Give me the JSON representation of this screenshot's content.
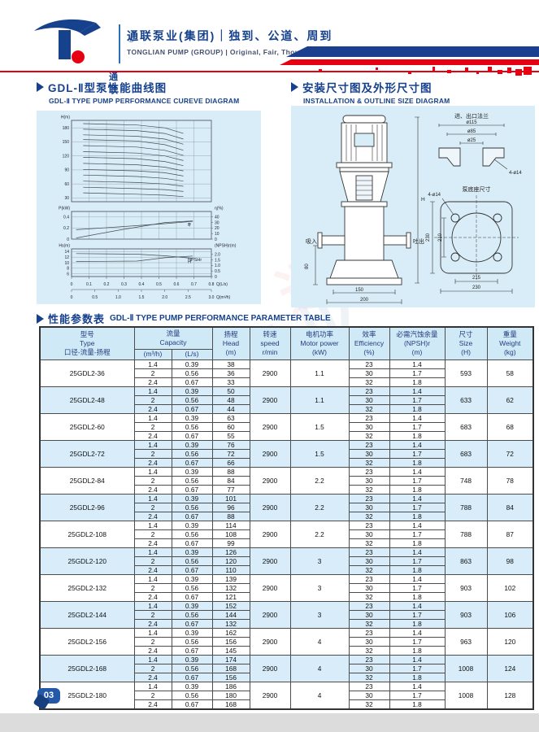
{
  "page": {
    "number": "03"
  },
  "header": {
    "logo_text": "通联",
    "registered": "®",
    "company_cn": "通联泵业(集团)｜独到、公道、周到",
    "company_en": "TONGLIAN PUMP (GROUP) | Original, Fair, Thoughtful"
  },
  "sections": {
    "curve_cn": "GDL-Ⅱ型泵性能曲线图",
    "curve_en": "GDL-Ⅱ TYPE PUMP PERFORMANCE CUREVE DIAGRAM",
    "install_cn": "安装尺寸图及外形尺寸图",
    "install_en": "INSTALLATION & OUTLINE SIZE DIAGRAM",
    "table_cn": "性能参数表",
    "table_en": "GDL-Ⅱ TYPE PUMP PERFORMANCE PARAMETER TABLE"
  },
  "chart_data": {
    "type": "line",
    "title": "GDL-Ⅱ type pump performance curves",
    "x_axis": {
      "labels": [
        "Q(L/s)",
        "Q(m³/h)"
      ],
      "ticks_ls": [
        "0",
        "0.1",
        "0.2",
        "0.3",
        "0.4",
        "0.5",
        "0.6",
        "0.7",
        "0.8"
      ],
      "ticks_m3h": [
        "0",
        "0.5",
        "1.0",
        "1.5",
        "2.0",
        "2.5",
        "3.0"
      ],
      "max_m3h": 3.0
    },
    "panels": [
      {
        "id": "head",
        "ylabel": "H(m)",
        "yticks": [
          "180",
          "150",
          "120",
          "90",
          "60",
          "30"
        ],
        "ylim": [
          22,
          196
        ],
        "series": [
          {
            "name": "25GDL2-36",
            "x": [
              0.25,
              1.4,
              2.0,
              2.4
            ],
            "y": [
              41,
              38,
              36,
              33
            ]
          },
          {
            "name": "25GDL2-48",
            "x": [
              0.25,
              1.4,
              2.0,
              2.4
            ],
            "y": [
              53,
              50,
              48,
              44
            ]
          },
          {
            "name": "25GDL2-60",
            "x": [
              0.25,
              1.4,
              2.0,
              2.4
            ],
            "y": [
              66,
              63,
              60,
              55
            ]
          },
          {
            "name": "25GDL2-72",
            "x": [
              0.25,
              1.4,
              2.0,
              2.4
            ],
            "y": [
              79,
              76,
              72,
              66
            ]
          },
          {
            "name": "25GDL2-84",
            "x": [
              0.25,
              1.4,
              2.0,
              2.4
            ],
            "y": [
              91,
              88,
              84,
              77
            ]
          },
          {
            "name": "25GDL2-96",
            "x": [
              0.25,
              1.4,
              2.0,
              2.4
            ],
            "y": [
              104,
              101,
              96,
              88
            ]
          },
          {
            "name": "25GDL2-108",
            "x": [
              0.25,
              1.4,
              2.0,
              2.4
            ],
            "y": [
              117,
              114,
              108,
              99
            ]
          },
          {
            "name": "25GDL2-120",
            "x": [
              0.25,
              1.4,
              2.0,
              2.4
            ],
            "y": [
              129,
              126,
              120,
              110
            ]
          },
          {
            "name": "25GDL2-132",
            "x": [
              0.25,
              1.4,
              2.0,
              2.4
            ],
            "y": [
              142,
              139,
              132,
              121
            ]
          },
          {
            "name": "25GDL2-144",
            "x": [
              0.25,
              1.4,
              2.0,
              2.4
            ],
            "y": [
              155,
              152,
              144,
              132
            ]
          },
          {
            "name": "25GDL2-156",
            "x": [
              0.25,
              1.4,
              2.0,
              2.4
            ],
            "y": [
              165,
              162,
              156,
              145
            ]
          },
          {
            "name": "25GDL2-168",
            "x": [
              0.25,
              1.4,
              2.0,
              2.4
            ],
            "y": [
              177,
              174,
              168,
              156
            ]
          },
          {
            "name": "25GDL2-180",
            "x": [
              0.25,
              1.4,
              2.0,
              2.4
            ],
            "y": [
              189,
              186,
              180,
              168
            ]
          }
        ]
      },
      {
        "id": "power-efficiency",
        "ylabel": "P(kW)",
        "yticks": [
          "0.4",
          "0.2",
          "0"
        ],
        "ylim": [
          0,
          0.5
        ],
        "right_ylabel": "η(%)",
        "right_yticks": [
          "40",
          "30",
          "20",
          "10",
          "0"
        ],
        "right_ylim": [
          0,
          50
        ],
        "series": [
          {
            "name": "efficiency",
            "axis": "right",
            "label": "η",
            "x": [
              0.1,
              1.0,
              2.0,
              2.6
            ],
            "y": [
              2,
              16,
              30,
              33
            ]
          },
          {
            "name": "power",
            "axis": "left",
            "label": "P",
            "x": [
              0.1,
              1.0,
              2.0,
              2.6
            ],
            "y": [
              0.17,
              0.22,
              0.28,
              0.32
            ]
          }
        ]
      },
      {
        "id": "npsh",
        "ylabel": "Hs(m)",
        "yticks": [
          "14",
          "12",
          "10",
          "8",
          "6"
        ],
        "ylim": [
          5,
          15
        ],
        "right_ylabel": "(NPSH)r(m)",
        "right_yticks": [
          "2.0",
          "1.5",
          "1.0",
          "0.5",
          "0"
        ],
        "right_ylim": [
          0,
          2.5
        ],
        "series": [
          {
            "name": "NPSHr",
            "axis": "right",
            "label": "NPSHr",
            "x": [
              0.1,
              1.4,
              2.0,
              2.6
            ],
            "y": [
              1.35,
              1.4,
              1.7,
              1.85
            ]
          },
          {
            "name": "Hs",
            "axis": "left",
            "label": "H",
            "x": [
              0.1,
              1.4,
              2.0,
              2.6
            ],
            "y": [
              13.3,
              13.1,
              12.5,
              11.6
            ]
          }
        ]
      }
    ]
  },
  "diagram": {
    "flange": {
      "title": "进、出口法兰",
      "d_outer": "ø115",
      "d_bolt": "ø85",
      "d_bore": "ø25",
      "holes": "4-ø14"
    },
    "base": {
      "title": "泵底座尺寸",
      "outer_v": "230",
      "inner_v": "210",
      "inner_h": "215",
      "outer_h": "230",
      "holes": "4-ø14"
    },
    "pump": {
      "suction": "吸入",
      "discharge": "吐出",
      "height": "H",
      "h80": "80",
      "w150": "150",
      "w200": "200"
    }
  },
  "table": {
    "headers": {
      "type_cn": "型号",
      "type_en": "Type",
      "type_sub": "口径-流量-扬程",
      "capacity_cn": "流量",
      "capacity_en": "Capacity",
      "unit_m3h": "(m³/h)",
      "unit_ls": "(L/s)",
      "head_cn": "扬程",
      "head_en": "Head",
      "head_unit": "(m)",
      "speed_cn": "转速",
      "speed_en": "speed",
      "speed_unit": "r/min",
      "power_cn": "电机功率",
      "power_en": "Motor power",
      "power_unit": "(kW)",
      "eff_cn": "效率",
      "eff_en": "Efficiency",
      "eff_unit": "(%)",
      "npsh_cn": "必需汽蚀余量",
      "npsh_en": "(NPSH)r",
      "npsh_unit": "(m)",
      "size_cn": "尺寸",
      "size_en": "Size",
      "size_unit": "(H)",
      "weight_cn": "重量",
      "weight_en": "Weight",
      "weight_unit": "(kg)"
    },
    "groups": [
      {
        "model": "25GDL2-36",
        "speed": "2900",
        "power": "1.1",
        "size": "593",
        "weight": "58",
        "rows": [
          {
            "m3h": "1.4",
            "ls": "0.39",
            "head": "38",
            "eff": "23",
            "npsh": "1.4"
          },
          {
            "m3h": "2",
            "ls": "0.56",
            "head": "36",
            "eff": "30",
            "npsh": "1.7"
          },
          {
            "m3h": "2.4",
            "ls": "0.67",
            "head": "33",
            "eff": "32",
            "npsh": "1.8"
          }
        ]
      },
      {
        "model": "25GDL2-48",
        "speed": "2900",
        "power": "1.1",
        "size": "633",
        "weight": "62",
        "rows": [
          {
            "m3h": "1.4",
            "ls": "0.39",
            "head": "50",
            "eff": "23",
            "npsh": "1.4"
          },
          {
            "m3h": "2",
            "ls": "0.56",
            "head": "48",
            "eff": "30",
            "npsh": "1.7"
          },
          {
            "m3h": "2.4",
            "ls": "0.67",
            "head": "44",
            "eff": "32",
            "npsh": "1.8"
          }
        ]
      },
      {
        "model": "25GDL2-60",
        "speed": "2900",
        "power": "1.5",
        "size": "683",
        "weight": "68",
        "rows": [
          {
            "m3h": "1.4",
            "ls": "0.39",
            "head": "63",
            "eff": "23",
            "npsh": "1.4"
          },
          {
            "m3h": "2",
            "ls": "0.56",
            "head": "60",
            "eff": "30",
            "npsh": "1.7"
          },
          {
            "m3h": "2.4",
            "ls": "0.67",
            "head": "55",
            "eff": "32",
            "npsh": "1.8"
          }
        ]
      },
      {
        "model": "25GDL2-72",
        "speed": "2900",
        "power": "1.5",
        "size": "683",
        "weight": "72",
        "rows": [
          {
            "m3h": "1.4",
            "ls": "0.39",
            "head": "76",
            "eff": "23",
            "npsh": "1.4"
          },
          {
            "m3h": "2",
            "ls": "0.56",
            "head": "72",
            "eff": "30",
            "npsh": "1.7"
          },
          {
            "m3h": "2.4",
            "ls": "0.67",
            "head": "66",
            "eff": "32",
            "npsh": "1.8"
          }
        ]
      },
      {
        "model": "25GDL2-84",
        "speed": "2900",
        "power": "2.2",
        "size": "748",
        "weight": "78",
        "rows": [
          {
            "m3h": "1.4",
            "ls": "0.39",
            "head": "88",
            "eff": "23",
            "npsh": "1.4"
          },
          {
            "m3h": "2",
            "ls": "0.56",
            "head": "84",
            "eff": "30",
            "npsh": "1.7"
          },
          {
            "m3h": "2.4",
            "ls": "0.67",
            "head": "77",
            "eff": "32",
            "npsh": "1.8"
          }
        ]
      },
      {
        "model": "25GDL2-96",
        "speed": "2900",
        "power": "2.2",
        "size": "788",
        "weight": "84",
        "rows": [
          {
            "m3h": "1.4",
            "ls": "0.39",
            "head": "101",
            "eff": "23",
            "npsh": "1.4"
          },
          {
            "m3h": "2",
            "ls": "0.56",
            "head": "96",
            "eff": "30",
            "npsh": "1.7"
          },
          {
            "m3h": "2.4",
            "ls": "0.67",
            "head": "88",
            "eff": "32",
            "npsh": "1.8"
          }
        ]
      },
      {
        "model": "25GDL2-108",
        "speed": "2900",
        "power": "2.2",
        "size": "788",
        "weight": "87",
        "rows": [
          {
            "m3h": "1.4",
            "ls": "0.39",
            "head": "114",
            "eff": "23",
            "npsh": "1.4"
          },
          {
            "m3h": "2",
            "ls": "0.56",
            "head": "108",
            "eff": "30",
            "npsh": "1.7"
          },
          {
            "m3h": "2.4",
            "ls": "0.67",
            "head": "99",
            "eff": "32",
            "npsh": "1.8"
          }
        ]
      },
      {
        "model": "25GDL2-120",
        "speed": "2900",
        "power": "3",
        "size": "863",
        "weight": "98",
        "rows": [
          {
            "m3h": "1.4",
            "ls": "0.39",
            "head": "126",
            "eff": "23",
            "npsh": "1.4"
          },
          {
            "m3h": "2",
            "ls": "0.56",
            "head": "120",
            "eff": "30",
            "npsh": "1.7"
          },
          {
            "m3h": "2.4",
            "ls": "0.67",
            "head": "110",
            "eff": "32",
            "npsh": "1.8"
          }
        ]
      },
      {
        "model": "25GDL2-132",
        "speed": "2900",
        "power": "3",
        "size": "903",
        "weight": "102",
        "rows": [
          {
            "m3h": "1.4",
            "ls": "0.39",
            "head": "139",
            "eff": "23",
            "npsh": "1.4"
          },
          {
            "m3h": "2",
            "ls": "0.56",
            "head": "132",
            "eff": "30",
            "npsh": "1.7"
          },
          {
            "m3h": "2.4",
            "ls": "0.67",
            "head": "121",
            "eff": "32",
            "npsh": "1.8"
          }
        ]
      },
      {
        "model": "25GDL2-144",
        "speed": "2900",
        "power": "3",
        "size": "903",
        "weight": "106",
        "rows": [
          {
            "m3h": "1.4",
            "ls": "0.39",
            "head": "152",
            "eff": "23",
            "npsh": "1.4"
          },
          {
            "m3h": "2",
            "ls": "0.56",
            "head": "144",
            "eff": "30",
            "npsh": "1.7"
          },
          {
            "m3h": "2.4",
            "ls": "0.67",
            "head": "132",
            "eff": "32",
            "npsh": "1.8"
          }
        ]
      },
      {
        "model": "25GDL2-156",
        "speed": "2900",
        "power": "4",
        "size": "963",
        "weight": "120",
        "rows": [
          {
            "m3h": "1.4",
            "ls": "0.39",
            "head": "162",
            "eff": "23",
            "npsh": "1.4"
          },
          {
            "m3h": "2",
            "ls": "0.56",
            "head": "156",
            "eff": "30",
            "npsh": "1.7"
          },
          {
            "m3h": "2.4",
            "ls": "0.67",
            "head": "145",
            "eff": "32",
            "npsh": "1.8"
          }
        ]
      },
      {
        "model": "25GDL2-168",
        "speed": "2900",
        "power": "4",
        "size": "1008",
        "weight": "124",
        "rows": [
          {
            "m3h": "1.4",
            "ls": "0.39",
            "head": "174",
            "eff": "23",
            "npsh": "1.4"
          },
          {
            "m3h": "2",
            "ls": "0.56",
            "head": "168",
            "eff": "30",
            "npsh": "1.7"
          },
          {
            "m3h": "2.4",
            "ls": "0.67",
            "head": "156",
            "eff": "32",
            "npsh": "1.8"
          }
        ]
      },
      {
        "model": "25GDL2-180",
        "speed": "2900",
        "power": "4",
        "size": "1008",
        "weight": "128",
        "rows": [
          {
            "m3h": "1.4",
            "ls": "0.39",
            "head": "186",
            "eff": "23",
            "npsh": "1.4"
          },
          {
            "m3h": "2",
            "ls": "0.56",
            "head": "180",
            "eff": "30",
            "npsh": "1.7"
          },
          {
            "m3h": "2.4",
            "ls": "0.67",
            "head": "168",
            "eff": "32",
            "npsh": "1.8"
          }
        ]
      }
    ]
  },
  "watermark": {
    "text": "通联泵业"
  },
  "colors": {
    "navy": "#16418c",
    "red": "#e60012",
    "panel_blue": "#d9edf8",
    "row_blue": "#d8edf9"
  }
}
